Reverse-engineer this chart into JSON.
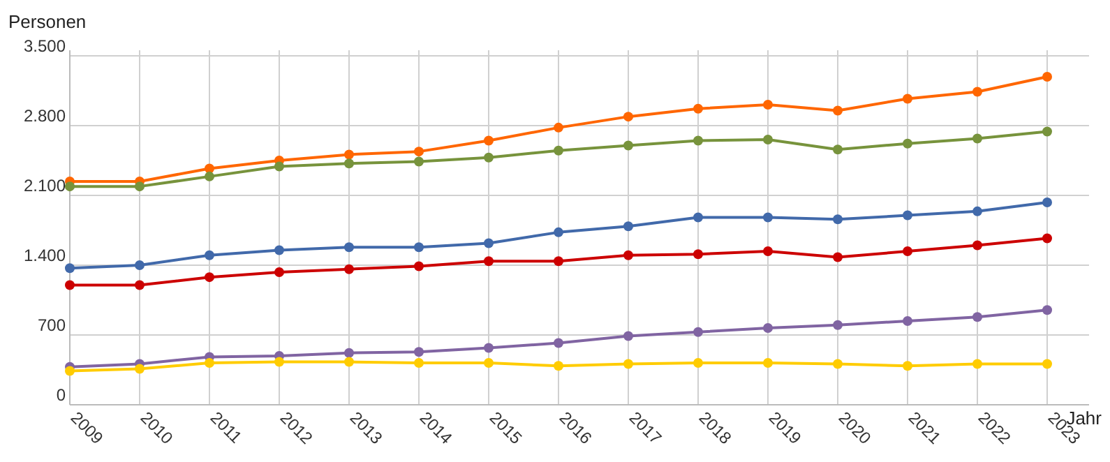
{
  "chart_data": {
    "type": "line",
    "ylabel": "Personen",
    "xlabel": "Jahr",
    "categories": [
      "2009",
      "2010",
      "2011",
      "2012",
      "2013",
      "2014",
      "2015",
      "2016",
      "2017",
      "2018",
      "2019",
      "2020",
      "2021",
      "2022",
      "2023"
    ],
    "ylim": [
      0,
      3500
    ],
    "yticks": [
      0,
      700,
      {
        "value": 1400,
        "label": "1.400"
      },
      {
        "value": 2100,
        "label": "2.100"
      },
      {
        "value": 2800,
        "label": "2.800"
      },
      {
        "value": 3500,
        "label": "3.500"
      }
    ],
    "grid": true,
    "marker": "circle",
    "line_style": "solid",
    "series": [
      {
        "color": "#ff6600",
        "values": [
          2240,
          2240,
          2370,
          2450,
          2510,
          2540,
          2650,
          2780,
          2890,
          2970,
          3010,
          2950,
          3070,
          3140,
          3290
        ]
      },
      {
        "color": "#77933c",
        "values": [
          2190,
          2190,
          2290,
          2390,
          2420,
          2440,
          2480,
          2550,
          2600,
          2650,
          2660,
          2560,
          2620,
          2670,
          2740
        ]
      },
      {
        "color": "#4169aa",
        "values": [
          1370,
          1400,
          1500,
          1550,
          1580,
          1580,
          1620,
          1730,
          1790,
          1880,
          1880,
          1860,
          1900,
          1940,
          2030
        ]
      },
      {
        "color": "#cc0000",
        "values": [
          1200,
          1200,
          1280,
          1330,
          1360,
          1390,
          1440,
          1440,
          1500,
          1510,
          1540,
          1480,
          1540,
          1600,
          1670
        ]
      },
      {
        "color": "#8064a2",
        "values": [
          380,
          410,
          480,
          490,
          520,
          530,
          570,
          620,
          690,
          730,
          770,
          800,
          840,
          880,
          950
        ]
      },
      {
        "color": "#ffcc00",
        "values": [
          340,
          360,
          420,
          430,
          430,
          420,
          420,
          390,
          410,
          420,
          420,
          410,
          390,
          410,
          410
        ]
      }
    ]
  }
}
